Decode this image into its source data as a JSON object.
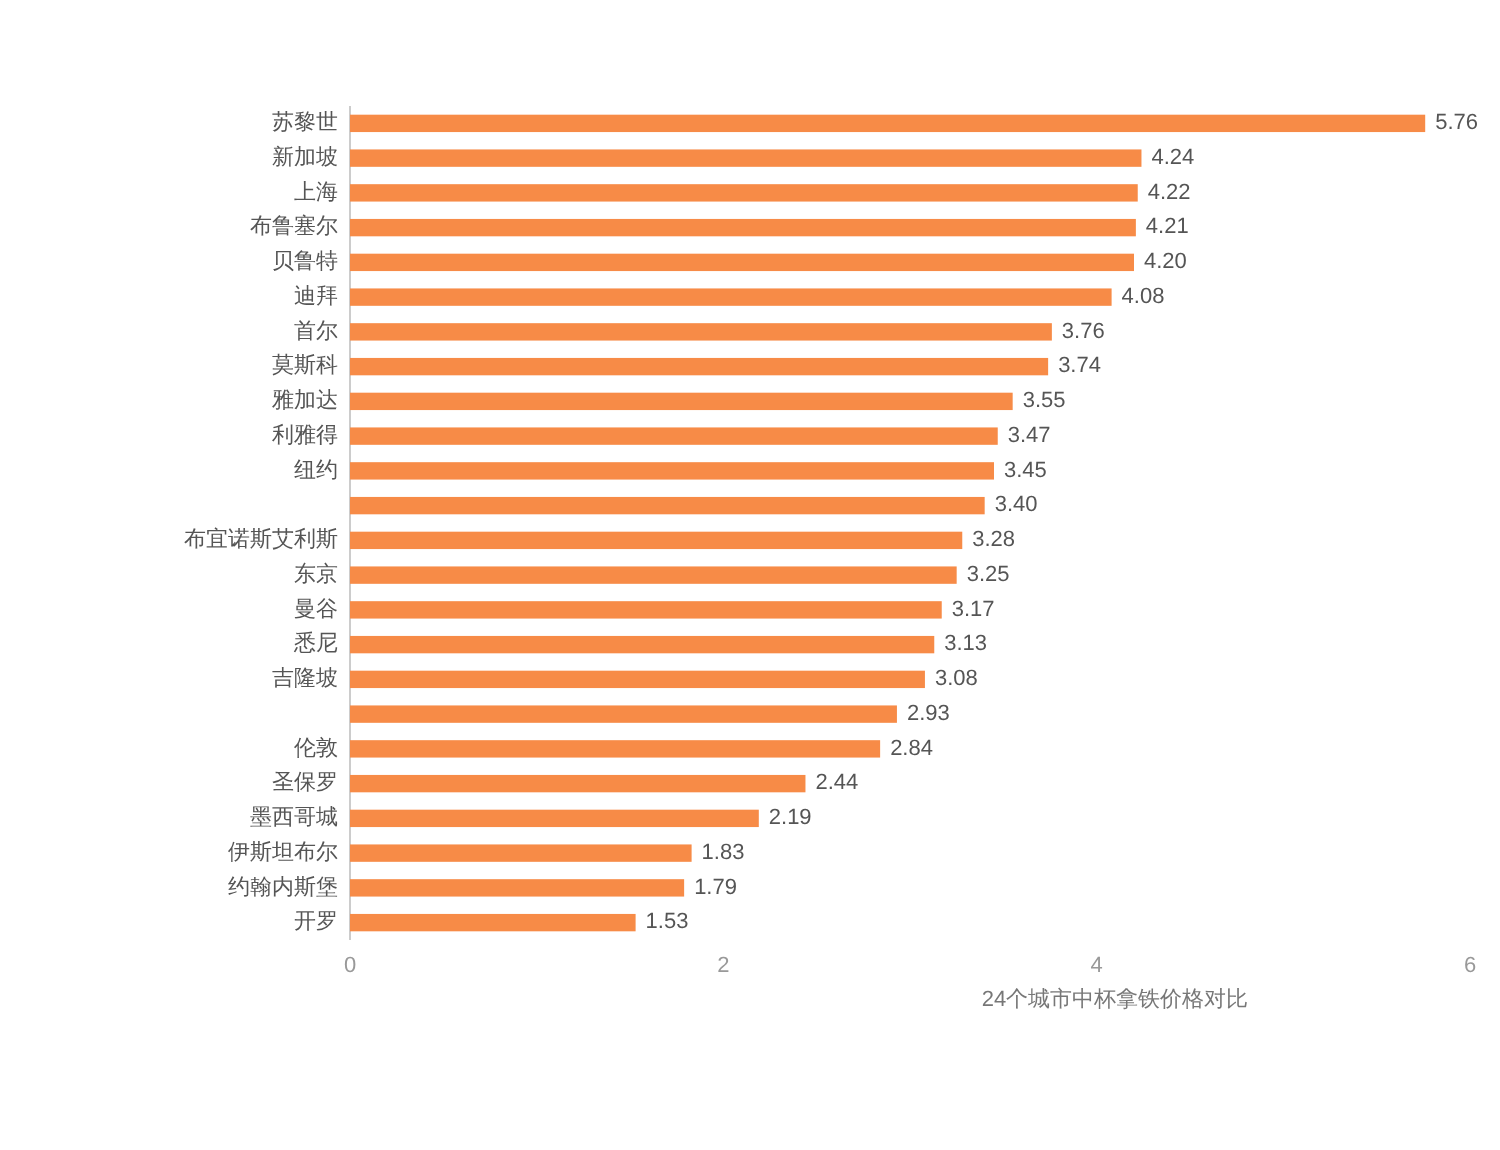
{
  "chart_data": {
    "type": "bar",
    "orientation": "horizontal",
    "categories": [
      "苏黎世",
      "新加坡",
      "上海",
      "布鲁塞尔",
      "贝鲁特",
      "迪拜",
      "首尔",
      "莫斯科",
      "雅加达",
      "利雅得",
      "纽约",
      null,
      "布宜诺斯艾利斯",
      "东京",
      "曼谷",
      "悉尼",
      "吉隆坡",
      null,
      "伦敦",
      "圣保罗",
      "墨西哥城",
      "伊斯坦布尔",
      "约翰内斯堡",
      "开罗"
    ],
    "values": [
      5.76,
      4.24,
      4.22,
      4.21,
      4.2,
      4.08,
      3.76,
      3.74,
      3.55,
      3.47,
      3.45,
      3.4,
      3.28,
      3.25,
      3.17,
      3.13,
      3.08,
      2.93,
      2.84,
      2.44,
      2.19,
      1.83,
      1.79,
      1.53
    ],
    "value_labels": [
      "5.76",
      "4.24",
      "4.22",
      "4.21",
      "4.20",
      "4.08",
      "3.76",
      "3.74",
      "3.55",
      "3.47",
      "3.45",
      "3.40",
      "3.28",
      "3.25",
      "3.17",
      "3.13",
      "3.08",
      "2.93",
      "2.84",
      "2.44",
      "2.19",
      "1.83",
      "1.79",
      "1.53"
    ],
    "color": "#f78b47",
    "xlim": [
      0,
      6
    ],
    "xticks": [
      0,
      2,
      4,
      6
    ],
    "xlabel": "24个城市中杯拿铁价格对比"
  }
}
